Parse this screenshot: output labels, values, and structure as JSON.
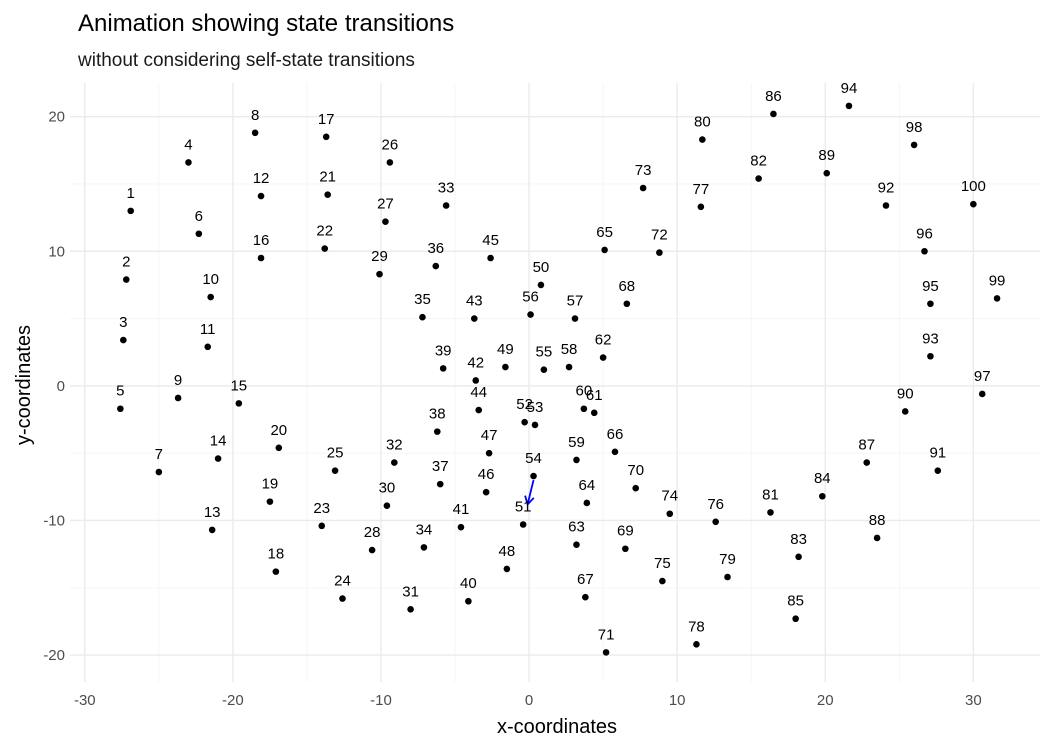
{
  "chart_data": {
    "type": "scatter",
    "title": "Animation showing state transitions",
    "subtitle": "without considering self-state transitions",
    "xlabel": "x-coordinates",
    "ylabel": "y-coordinates",
    "xlim": [
      -31,
      34.5
    ],
    "ylim": [
      -22,
      22.5
    ],
    "x_ticks": [
      -30,
      -20,
      -10,
      0,
      10,
      20,
      30
    ],
    "y_ticks": [
      -20,
      -10,
      0,
      10,
      20
    ],
    "x_tick_labels": [
      "-30",
      "-20",
      "-10",
      "0",
      "10",
      "20",
      "30"
    ],
    "y_tick_labels": [
      "-20",
      "-10",
      "0",
      "10",
      "20"
    ],
    "grid": true,
    "points": [
      {
        "label": "1",
        "x": -26.9,
        "y": 13.0
      },
      {
        "label": "2",
        "x": -27.2,
        "y": 7.9
      },
      {
        "label": "3",
        "x": -27.4,
        "y": 3.4
      },
      {
        "label": "4",
        "x": -23.0,
        "y": 16.6
      },
      {
        "label": "5",
        "x": -27.6,
        "y": -1.7
      },
      {
        "label": "6",
        "x": -22.3,
        "y": 11.3
      },
      {
        "label": "7",
        "x": -25.0,
        "y": -6.4
      },
      {
        "label": "8",
        "x": -18.5,
        "y": 18.8
      },
      {
        "label": "9",
        "x": -23.7,
        "y": -0.9
      },
      {
        "label": "10",
        "x": -21.5,
        "y": 6.6
      },
      {
        "label": "11",
        "x": -21.7,
        "y": 2.9
      },
      {
        "label": "12",
        "x": -18.1,
        "y": 14.1
      },
      {
        "label": "13",
        "x": -21.4,
        "y": -10.7
      },
      {
        "label": "14",
        "x": -21.0,
        "y": -5.4
      },
      {
        "label": "15",
        "x": -19.6,
        "y": -1.3
      },
      {
        "label": "16",
        "x": -18.1,
        "y": 9.5
      },
      {
        "label": "17",
        "x": -13.7,
        "y": 18.5
      },
      {
        "label": "18",
        "x": -17.1,
        "y": -13.8
      },
      {
        "label": "19",
        "x": -17.5,
        "y": -8.6
      },
      {
        "label": "20",
        "x": -16.9,
        "y": -4.6
      },
      {
        "label": "21",
        "x": -13.6,
        "y": 14.2
      },
      {
        "label": "22",
        "x": -13.8,
        "y": 10.2
      },
      {
        "label": "23",
        "x": -14.0,
        "y": -10.4
      },
      {
        "label": "24",
        "x": -12.6,
        "y": -15.8
      },
      {
        "label": "25",
        "x": -13.1,
        "y": -6.3
      },
      {
        "label": "26",
        "x": -9.4,
        "y": 16.6
      },
      {
        "label": "27",
        "x": -9.7,
        "y": 12.2
      },
      {
        "label": "28",
        "x": -10.6,
        "y": -12.2
      },
      {
        "label": "29",
        "x": -10.1,
        "y": 8.3
      },
      {
        "label": "30",
        "x": -9.6,
        "y": -8.9
      },
      {
        "label": "31",
        "x": -8.0,
        "y": -16.6
      },
      {
        "label": "32",
        "x": -9.1,
        "y": -5.7
      },
      {
        "label": "33",
        "x": -5.6,
        "y": 13.4
      },
      {
        "label": "34",
        "x": -7.1,
        "y": -12.0
      },
      {
        "label": "35",
        "x": -7.2,
        "y": 5.1
      },
      {
        "label": "36",
        "x": -6.3,
        "y": 8.9
      },
      {
        "label": "37",
        "x": -6.0,
        "y": -7.3
      },
      {
        "label": "38",
        "x": -6.2,
        "y": -3.4
      },
      {
        "label": "39",
        "x": -5.8,
        "y": 1.3
      },
      {
        "label": "40",
        "x": -4.1,
        "y": -16.0
      },
      {
        "label": "41",
        "x": -4.6,
        "y": -10.5
      },
      {
        "label": "42",
        "x": -3.6,
        "y": 0.4
      },
      {
        "label": "43",
        "x": -3.7,
        "y": 5.0
      },
      {
        "label": "44",
        "x": -3.4,
        "y": -1.8
      },
      {
        "label": "45",
        "x": -2.6,
        "y": 9.5
      },
      {
        "label": "46",
        "x": -2.9,
        "y": -7.9
      },
      {
        "label": "47",
        "x": -2.7,
        "y": -5.0
      },
      {
        "label": "48",
        "x": -1.5,
        "y": -13.6
      },
      {
        "label": "49",
        "x": -1.6,
        "y": 1.4
      },
      {
        "label": "50",
        "x": 0.8,
        "y": 7.5
      },
      {
        "label": "51",
        "x": -0.4,
        "y": -10.3
      },
      {
        "label": "52",
        "x": -0.3,
        "y": -2.7
      },
      {
        "label": "53",
        "x": 0.4,
        "y": -2.9
      },
      {
        "label": "54",
        "x": 0.3,
        "y": -6.7
      },
      {
        "label": "55",
        "x": 1.0,
        "y": 1.2
      },
      {
        "label": "56",
        "x": 0.1,
        "y": 5.3
      },
      {
        "label": "57",
        "x": 3.1,
        "y": 5.0
      },
      {
        "label": "58",
        "x": 2.7,
        "y": 1.4
      },
      {
        "label": "59",
        "x": 3.2,
        "y": -5.5
      },
      {
        "label": "60",
        "x": 3.7,
        "y": -1.7
      },
      {
        "label": "61",
        "x": 4.4,
        "y": -2.0
      },
      {
        "label": "62",
        "x": 5.0,
        "y": 2.1
      },
      {
        "label": "63",
        "x": 3.2,
        "y": -11.8
      },
      {
        "label": "64",
        "x": 3.9,
        "y": -8.7
      },
      {
        "label": "65",
        "x": 5.1,
        "y": 10.1
      },
      {
        "label": "66",
        "x": 5.8,
        "y": -4.9
      },
      {
        "label": "67",
        "x": 3.8,
        "y": -15.7
      },
      {
        "label": "68",
        "x": 6.6,
        "y": 6.1
      },
      {
        "label": "69",
        "x": 6.5,
        "y": -12.1
      },
      {
        "label": "70",
        "x": 7.2,
        "y": -7.6
      },
      {
        "label": "71",
        "x": 5.2,
        "y": -19.8
      },
      {
        "label": "72",
        "x": 8.8,
        "y": 9.9
      },
      {
        "label": "73",
        "x": 7.7,
        "y": 14.7
      },
      {
        "label": "74",
        "x": 9.5,
        "y": -9.5
      },
      {
        "label": "75",
        "x": 9.0,
        "y": -14.5
      },
      {
        "label": "76",
        "x": 12.6,
        "y": -10.1
      },
      {
        "label": "77",
        "x": 11.6,
        "y": 13.3
      },
      {
        "label": "78",
        "x": 11.3,
        "y": -19.2
      },
      {
        "label": "79",
        "x": 13.4,
        "y": -14.2
      },
      {
        "label": "80",
        "x": 11.7,
        "y": 18.3
      },
      {
        "label": "81",
        "x": 16.3,
        "y": -9.4
      },
      {
        "label": "82",
        "x": 15.5,
        "y": 15.4
      },
      {
        "label": "83",
        "x": 18.2,
        "y": -12.7
      },
      {
        "label": "84",
        "x": 19.8,
        "y": -8.2
      },
      {
        "label": "85",
        "x": 18.0,
        "y": -17.3
      },
      {
        "label": "86",
        "x": 16.5,
        "y": 20.2
      },
      {
        "label": "87",
        "x": 22.8,
        "y": -5.7
      },
      {
        "label": "88",
        "x": 23.5,
        "y": -11.3
      },
      {
        "label": "89",
        "x": 20.1,
        "y": 15.8
      },
      {
        "label": "90",
        "x": 25.4,
        "y": -1.9
      },
      {
        "label": "91",
        "x": 27.6,
        "y": -6.3
      },
      {
        "label": "92",
        "x": 24.1,
        "y": 13.4
      },
      {
        "label": "93",
        "x": 27.1,
        "y": 2.2
      },
      {
        "label": "94",
        "x": 21.6,
        "y": 20.8
      },
      {
        "label": "95",
        "x": 27.1,
        "y": 6.1
      },
      {
        "label": "96",
        "x": 26.7,
        "y": 10.0
      },
      {
        "label": "97",
        "x": 30.6,
        "y": -0.6
      },
      {
        "label": "98",
        "x": 26.0,
        "y": 17.9
      },
      {
        "label": "99",
        "x": 31.6,
        "y": 6.5
      },
      {
        "label": "100",
        "x": 30.0,
        "y": 13.5
      }
    ],
    "arrow": {
      "from": {
        "x": 0.3,
        "y": -6.7
      },
      "to": {
        "x": -0.1,
        "y": -8.8
      },
      "color": "#0000ff"
    },
    "point_color": "#000000"
  }
}
